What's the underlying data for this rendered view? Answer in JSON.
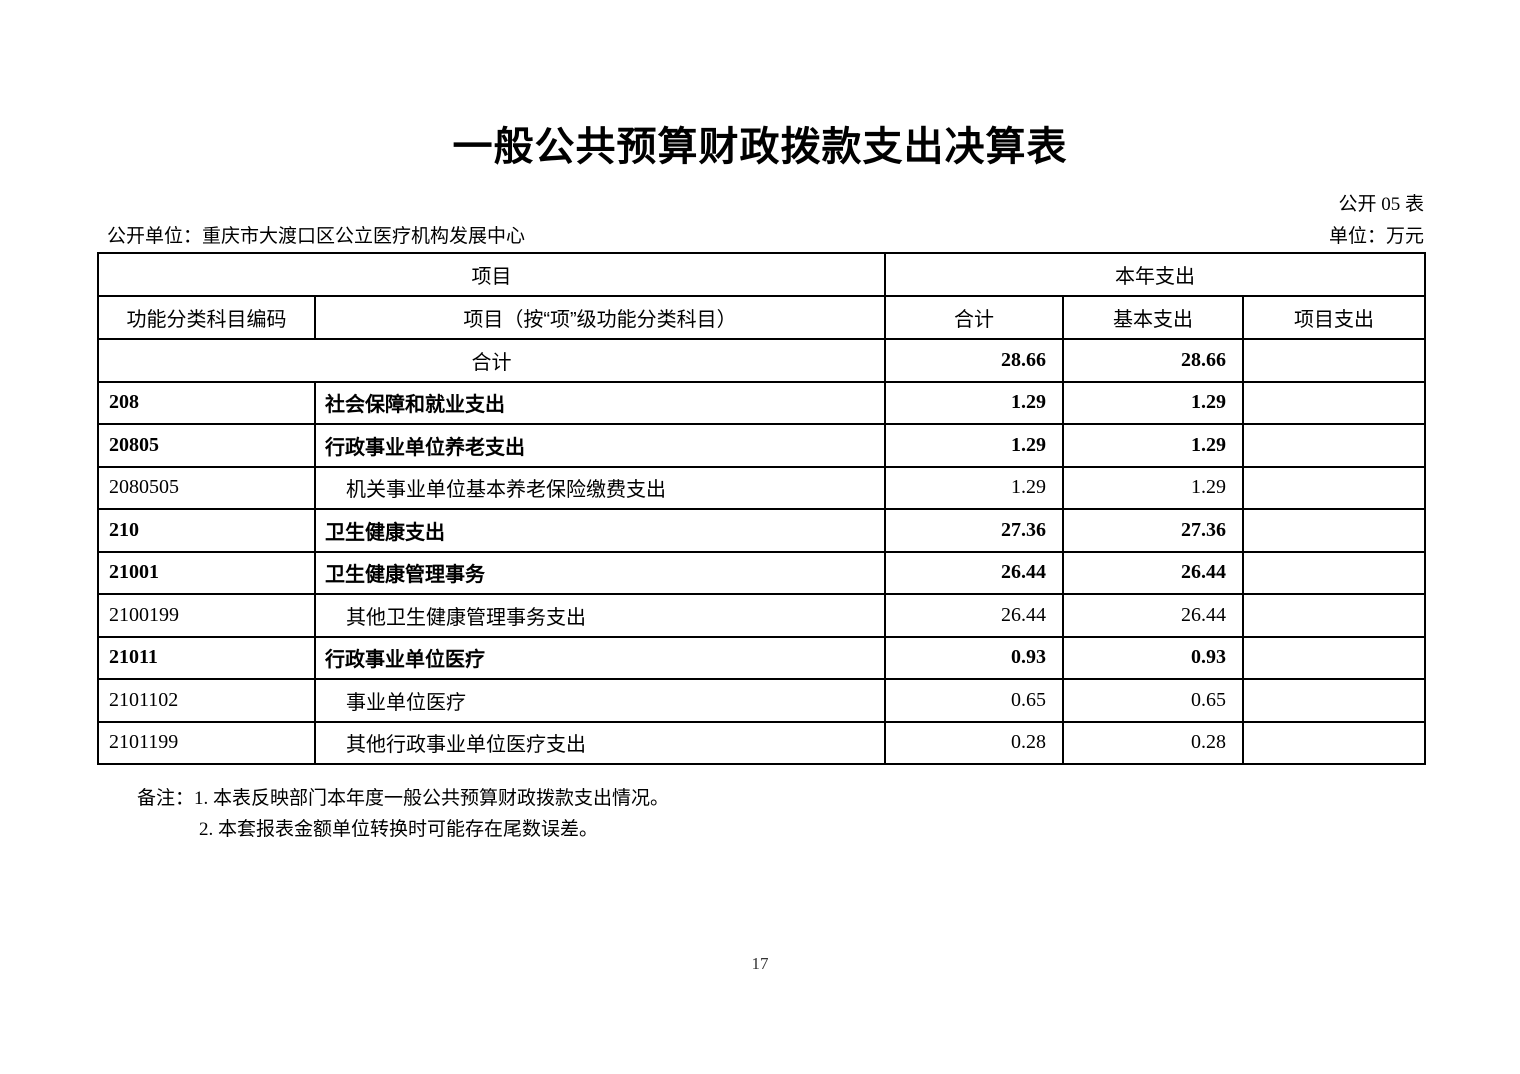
{
  "page": {
    "title": "一般公共预算财政拨款支出决算表",
    "table_code_label": "公开 05 表",
    "org_label": "公开单位：重庆市大渡口区公立医疗机构发展中心",
    "unit_label": "单位：万元",
    "page_number": "17"
  },
  "table": {
    "header": {
      "group_item": "项目",
      "group_year_expense": "本年支出",
      "col_code": "功能分类科目编码",
      "col_item": "项目（按“项”级功能分类科目）",
      "col_total": "合计",
      "col_basic": "基本支出",
      "col_project": "项目支出"
    },
    "rows": [
      {
        "level": "total",
        "merged": true,
        "code": "",
        "item": "合计",
        "total": "28.66",
        "basic": "28.66",
        "project": ""
      },
      {
        "level": "parent",
        "merged": false,
        "code": "208",
        "item": "社会保障和就业支出",
        "total": "1.29",
        "basic": "1.29",
        "project": ""
      },
      {
        "level": "parent",
        "merged": false,
        "code": "20805",
        "item": "行政事业单位养老支出",
        "total": "1.29",
        "basic": "1.29",
        "project": ""
      },
      {
        "level": "leaf",
        "merged": false,
        "code": "2080505",
        "item": "机关事业单位基本养老保险缴费支出",
        "total": "1.29",
        "basic": "1.29",
        "project": ""
      },
      {
        "level": "parent",
        "merged": false,
        "code": "210",
        "item": "卫生健康支出",
        "total": "27.36",
        "basic": "27.36",
        "project": ""
      },
      {
        "level": "parent",
        "merged": false,
        "code": "21001",
        "item": "卫生健康管理事务",
        "total": "26.44",
        "basic": "26.44",
        "project": ""
      },
      {
        "level": "leaf",
        "merged": false,
        "code": "2100199",
        "item": "其他卫生健康管理事务支出",
        "total": "26.44",
        "basic": "26.44",
        "project": ""
      },
      {
        "level": "parent",
        "merged": false,
        "code": "21011",
        "item": "行政事业单位医疗",
        "total": "0.93",
        "basic": "0.93",
        "project": ""
      },
      {
        "level": "leaf",
        "merged": false,
        "code": "2101102",
        "item": "事业单位医疗",
        "total": "0.65",
        "basic": "0.65",
        "project": ""
      },
      {
        "level": "leaf",
        "merged": false,
        "code": "2101199",
        "item": "其他行政事业单位医疗支出",
        "total": "0.28",
        "basic": "0.28",
        "project": ""
      }
    ]
  },
  "notes": {
    "line1": "备注：1. 本表反映部门本年度一般公共预算财政拨款支出情况。",
    "line2": "2. 本套报表金额单位转换时可能存在尾数误差。"
  }
}
